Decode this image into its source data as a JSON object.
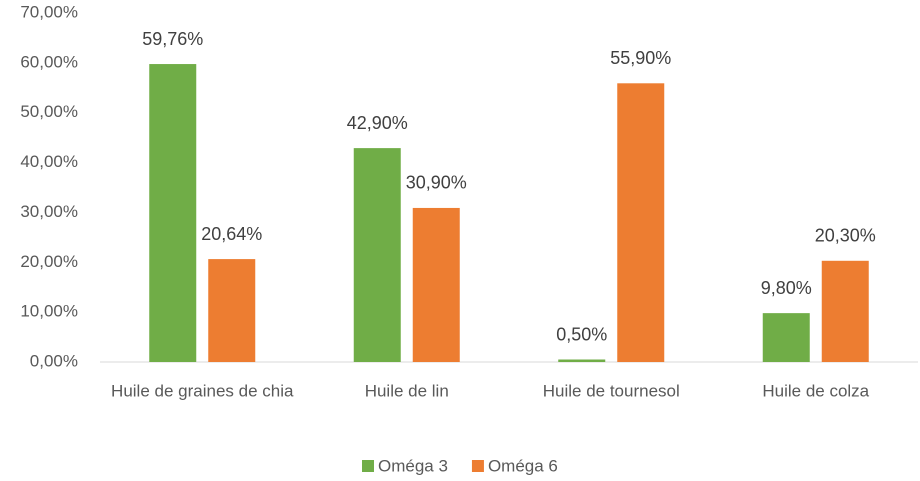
{
  "chart_data": {
    "type": "bar",
    "categories": [
      "Huile de graines de chia",
      "Huile de lin",
      "Huile de tournesol",
      "Huile de colza"
    ],
    "series": [
      {
        "name": "Oméga 3",
        "color": "#70ad47",
        "values": [
          59.76,
          42.9,
          0.5,
          9.8
        ],
        "value_labels": [
          "59,76%",
          "42,90%",
          "0,50%",
          "9,80%"
        ]
      },
      {
        "name": "Oméga 6",
        "color": "#ed7d31",
        "values": [
          20.64,
          30.9,
          55.9,
          20.3
        ],
        "value_labels": [
          "20,64%",
          "30,90%",
          "55,90%",
          "20,30%"
        ]
      }
    ],
    "ylim": [
      0,
      70
    ],
    "yticks": [
      {
        "value": 0,
        "label": "0,00%"
      },
      {
        "value": 10,
        "label": "10,00%"
      },
      {
        "value": 20,
        "label": "20,00%"
      },
      {
        "value": 30,
        "label": "30,00%"
      },
      {
        "value": 40,
        "label": "40,00%"
      },
      {
        "value": 50,
        "label": "50,00%"
      },
      {
        "value": 60,
        "label": "60,00%"
      },
      {
        "value": 70,
        "label": "70,00%"
      }
    ],
    "grid": false,
    "legend": "bottom"
  }
}
